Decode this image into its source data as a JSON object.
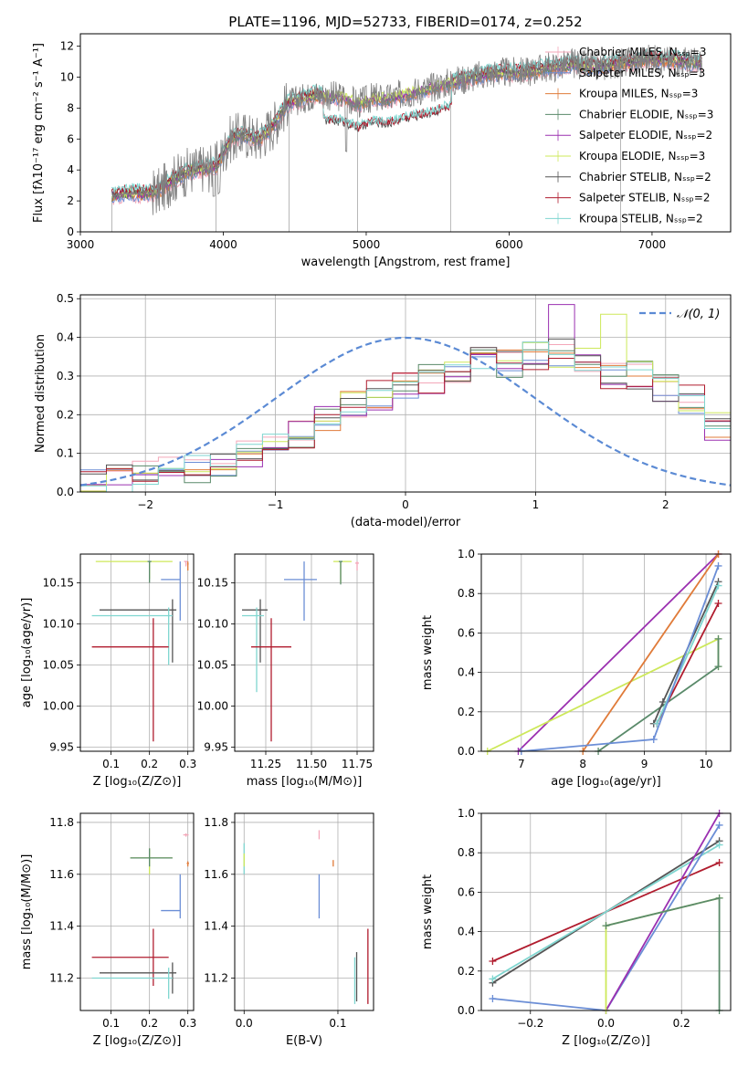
{
  "chart_data": [
    {
      "type": "line",
      "title": "PLATE=1196, MJD=52733, FIBERID=0174, z=0.252",
      "xlabel": "wavelength [Angstrom, rest frame]",
      "ylabel": "Flux [fλ10⁻¹⁷ erg cm⁻² s⁻¹ A⁻¹]",
      "xlim": [
        3000,
        7550
      ],
      "ylim": [
        0,
        12.8
      ],
      "xticks": [
        "3000",
        "4000",
        "5000",
        "6000",
        "7000"
      ],
      "yticks": [
        "0",
        "2",
        "4",
        "6",
        "8",
        "10",
        "12"
      ],
      "legend_position": "top-right",
      "series": [
        {
          "name": "Chabrier MILES, Nₛₛₚ=3",
          "color": "#f4a7b9"
        },
        {
          "name": "Salpeter MILES, Nₛₛₚ=3",
          "color": "#6b8ed6"
        },
        {
          "name": "Kroupa MILES, Nₛₛₚ=3",
          "color": "#e07b39"
        },
        {
          "name": "Chabrier ELODIE, Nₛₛₚ=3",
          "color": "#5a8a6a"
        },
        {
          "name": "Salpeter ELODIE, Nₛₛₚ=2",
          "color": "#9b30b0"
        },
        {
          "name": "Kroupa ELODIE, Nₛₛₚ=3",
          "color": "#cde85a"
        },
        {
          "name": "Chabrier STELIB, Nₛₛₚ=2",
          "color": "#555555"
        },
        {
          "name": "Salpeter STELIB, Nₛₛₚ=2",
          "color": "#b01c2e"
        },
        {
          "name": "Kroupa STELIB, Nₛₛₚ=2",
          "color": "#7fd6d0"
        }
      ],
      "continuum": {
        "x": [
          3220,
          3300,
          3450,
          3550,
          3650,
          3750,
          3850,
          3950,
          4050,
          4150,
          4250,
          4350,
          4450,
          4550,
          4650,
          4750,
          4850,
          4950,
          5050,
          5150,
          5250,
          5350,
          5450,
          5550,
          5650,
          5750,
          5850,
          5950,
          6050,
          6150,
          6250,
          6350,
          6450,
          6550,
          6650,
          6750,
          6850,
          6950,
          7050,
          7150,
          7250,
          7350
        ],
        "y": [
          2.3,
          2.5,
          2.5,
          2.6,
          3.4,
          3.9,
          4.1,
          4.2,
          6.0,
          6.3,
          6.0,
          6.9,
          8.3,
          8.6,
          8.9,
          8.8,
          8.7,
          8.3,
          8.7,
          8.6,
          8.9,
          9.1,
          9.3,
          9.6,
          9.8,
          10.0,
          10.2,
          10.3,
          10.3,
          10.4,
          10.6,
          10.7,
          10.9,
          10.7,
          10.7,
          10.9,
          11.0,
          11.2,
          11.1,
          11.1,
          11.0,
          10.9
        ]
      }
    },
    {
      "type": "line",
      "xlabel": "(data-model)/error",
      "ylabel": "Normed distribution",
      "xlim": [
        -2.5,
        2.5
      ],
      "ylim": [
        0,
        0.51
      ],
      "xticks": [
        "−2",
        "−1",
        "0",
        "1",
        "2"
      ],
      "yticks": [
        "0.0",
        "0.1",
        "0.2",
        "0.3",
        "0.4",
        "0.5"
      ],
      "legend": "𝒩(0, 1)",
      "legend_position": "top-right",
      "reference": {
        "name": "N(0,1)",
        "color": "#5b8ad4",
        "style": "dashed"
      },
      "hist_centers": [
        -2.4,
        -2.2,
        -2.0,
        -1.8,
        -1.6,
        -1.4,
        -1.2,
        -1.0,
        -0.8,
        -0.6,
        -0.4,
        -0.2,
        0.0,
        0.2,
        0.4,
        0.6,
        0.8,
        1.0,
        1.2,
        1.4,
        1.6,
        1.8,
        2.0,
        2.2,
        2.4
      ],
      "hist_base": [
        0.02,
        0.03,
        0.04,
        0.05,
        0.06,
        0.08,
        0.1,
        0.12,
        0.15,
        0.19,
        0.22,
        0.25,
        0.27,
        0.29,
        0.31,
        0.34,
        0.33,
        0.35,
        0.36,
        0.35,
        0.3,
        0.3,
        0.27,
        0.24,
        0.17
      ]
    },
    {
      "type": "scatter",
      "xlabel": "Z [log₁₀(Z/Z⊙)]",
      "ylabel": "age  [log₁₀(age/yr)]",
      "xlim": [
        0.02,
        0.315
      ],
      "ylim": [
        9.945,
        10.185
      ],
      "xticks": [
        "0.1",
        "0.2",
        "0.3"
      ],
      "yticks": [
        "9.95",
        "10.00",
        "10.05",
        "10.10",
        "10.15"
      ],
      "points": [
        {
          "color": "#cde85a",
          "x": 0.2,
          "xe": [
            0.06,
            0.26
          ],
          "y": 10.176,
          "ye": [
            10.155,
            10.176
          ]
        },
        {
          "color": "#f4a7b9",
          "x": 0.295,
          "xe": [
            0.29,
            0.3
          ],
          "y": 10.176,
          "ye": [
            10.17,
            10.176
          ]
        },
        {
          "color": "#e07b39",
          "x": 0.3,
          "xe": [
            0.298,
            0.302
          ],
          "y": 10.173,
          "ye": [
            10.165,
            10.176
          ]
        },
        {
          "color": "#5a8a6a",
          "x": 0.2,
          "xe": [
            0.195,
            0.205
          ],
          "y": 10.176,
          "ye": [
            10.15,
            10.176
          ]
        },
        {
          "color": "#6b8ed6",
          "x": 0.28,
          "xe": [
            0.23,
            0.28
          ],
          "y": 10.154,
          "ye": [
            10.104,
            10.176
          ]
        },
        {
          "color": "#555555",
          "x": 0.26,
          "xe": [
            0.07,
            0.27
          ],
          "y": 10.117,
          "ye": [
            10.053,
            10.13
          ]
        },
        {
          "color": "#7fd6d0",
          "x": 0.25,
          "xe": [
            0.05,
            0.26
          ],
          "y": 10.11,
          "ye": [
            10.05,
            10.12
          ]
        },
        {
          "color": "#b01c2e",
          "x": 0.21,
          "xe": [
            0.05,
            0.25
          ],
          "y": 10.072,
          "ye": [
            9.957,
            10.107
          ]
        }
      ]
    },
    {
      "type": "scatter",
      "xlabel": "mass [log₁₀(M/M⊙)]",
      "xlim": [
        11.08,
        11.84
      ],
      "ylim": [
        9.945,
        10.185
      ],
      "xticks": [
        "11.25",
        "11.50",
        "11.75"
      ],
      "yticks": [
        "9.95",
        "10.00",
        "10.05",
        "10.10",
        "10.15"
      ],
      "points": [
        {
          "color": "#cde85a",
          "x": 11.66,
          "xe": [
            11.62,
            11.72
          ],
          "y": 10.176,
          "ye": [
            10.15,
            10.176
          ]
        },
        {
          "color": "#5a8a6a",
          "x": 11.66,
          "xe": [
            11.65,
            11.67
          ],
          "y": 10.176,
          "ye": [
            10.148,
            10.176
          ]
        },
        {
          "color": "#f4a7b9",
          "x": 11.75,
          "xe": [
            11.74,
            11.76
          ],
          "y": 10.174,
          "ye": [
            10.165,
            10.176
          ]
        },
        {
          "color": "#6b8ed6",
          "x": 11.46,
          "xe": [
            11.35,
            11.53
          ],
          "y": 10.154,
          "ye": [
            10.104,
            10.176
          ]
        },
        {
          "color": "#555555",
          "x": 11.22,
          "xe": [
            11.12,
            11.26
          ],
          "y": 10.117,
          "ye": [
            10.053,
            10.13
          ]
        },
        {
          "color": "#7fd6d0",
          "x": 11.2,
          "xe": [
            11.12,
            11.24
          ],
          "y": 10.11,
          "ye": [
            10.017,
            10.12
          ]
        },
        {
          "color": "#b01c2e",
          "x": 11.28,
          "xe": [
            11.17,
            11.39
          ],
          "y": 10.072,
          "ye": [
            9.957,
            10.107
          ]
        }
      ]
    },
    {
      "type": "line",
      "xlabel": "age  [log₁₀(age/yr)]",
      "ylabel": "mass weight",
      "xlim": [
        6.35,
        10.4
      ],
      "ylim": [
        0,
        1
      ],
      "xticks": [
        "7",
        "8",
        "9",
        "10"
      ],
      "yticks": [
        "0.0",
        "0.2",
        "0.4",
        "0.6",
        "0.8",
        "1.0"
      ],
      "series": [
        {
          "color": "#9b30b0",
          "x": [
            6.95,
            10.2
          ],
          "y": [
            0.0,
            1.0
          ]
        },
        {
          "color": "#cde85a",
          "x": [
            6.45,
            10.2,
            10.2
          ],
          "y": [
            0.0,
            0.57,
            0.43
          ]
        },
        {
          "color": "#e07b39",
          "x": [
            8.0,
            10.2
          ],
          "y": [
            0.0,
            1.0
          ]
        },
        {
          "color": "#5a8a6a",
          "x": [
            8.25,
            10.2,
            10.2
          ],
          "y": [
            0.0,
            0.43,
            0.57
          ]
        },
        {
          "color": "#555555",
          "x": [
            9.15,
            9.3,
            10.2
          ],
          "y": [
            0.14,
            0.25,
            0.86
          ]
        },
        {
          "color": "#b01c2e",
          "x": [
            9.2,
            10.2
          ],
          "y": [
            0.14,
            0.75
          ]
        },
        {
          "color": "#7fd6d0",
          "x": [
            9.2,
            10.2
          ],
          "y": [
            0.14,
            0.84
          ]
        },
        {
          "color": "#6b8ed6",
          "x": [
            7.0,
            9.15,
            10.2
          ],
          "y": [
            0.0,
            0.06,
            0.94
          ]
        }
      ]
    },
    {
      "type": "scatter",
      "xlabel": "Z [log₁₀(Z/Z⊙)]",
      "ylabel": "mass [log₁₀(M/M⊙)]",
      "xlim": [
        0.02,
        0.315
      ],
      "ylim": [
        11.075,
        11.835
      ],
      "xticks": [
        "0.1",
        "0.2",
        "0.3"
      ],
      "yticks": [
        "11.2",
        "11.4",
        "11.6",
        "11.8"
      ],
      "points": [
        {
          "color": "#f4a7b9",
          "x": 0.295,
          "xe": [
            0.288,
            0.302
          ],
          "y": 11.752,
          "ye": [
            11.745,
            11.758
          ]
        },
        {
          "color": "#e07b39",
          "x": 0.3,
          "xe": [
            0.297,
            0.303
          ],
          "y": 11.642,
          "ye": [
            11.63,
            11.65
          ]
        },
        {
          "color": "#cde85a",
          "x": 0.2,
          "xe": [
            0.15,
            0.26
          ],
          "y": 11.663,
          "ye": [
            11.6,
            11.7
          ]
        },
        {
          "color": "#5a8a6a",
          "x": 0.2,
          "xe": [
            0.15,
            0.26
          ],
          "y": 11.663,
          "ye": [
            11.63,
            11.7
          ]
        },
        {
          "color": "#6b8ed6",
          "x": 0.28,
          "xe": [
            0.23,
            0.28
          ],
          "y": 11.46,
          "ye": [
            11.43,
            11.6
          ]
        },
        {
          "color": "#b01c2e",
          "x": 0.21,
          "xe": [
            0.05,
            0.25
          ],
          "y": 11.28,
          "ye": [
            11.17,
            11.39
          ]
        },
        {
          "color": "#555555",
          "x": 0.26,
          "xe": [
            0.07,
            0.27
          ],
          "y": 11.22,
          "ye": [
            11.14,
            11.26
          ]
        },
        {
          "color": "#7fd6d0",
          "x": 0.25,
          "xe": [
            0.05,
            0.26
          ],
          "y": 11.2,
          "ye": [
            11.12,
            11.24
          ]
        }
      ]
    },
    {
      "type": "scatter",
      "xlabel": "E(B-V)",
      "xlim": [
        -0.01,
        0.138
      ],
      "ylim": [
        11.075,
        11.835
      ],
      "xticks": [
        "0.0",
        "0.1"
      ],
      "yticks": [
        "11.2",
        "11.4",
        "11.6",
        "11.8"
      ],
      "points": [
        {
          "color": "#7fd6d0",
          "x": 0.0,
          "y1": 11.6,
          "y2": 11.72
        },
        {
          "color": "#cde85a",
          "x": 0.0,
          "y1": 11.63,
          "y2": 11.68
        },
        {
          "color": "#f4a7b9",
          "x": 0.08,
          "y1": 11.735,
          "y2": 11.77
        },
        {
          "color": "#e07b39",
          "x": 0.095,
          "y1": 11.63,
          "y2": 11.655
        },
        {
          "color": "#6b8ed6",
          "x": 0.08,
          "y1": 11.43,
          "y2": 11.6
        },
        {
          "color": "#555555",
          "x": 0.12,
          "y1": 11.11,
          "y2": 11.3
        },
        {
          "color": "#7fd6d0",
          "x": 0.118,
          "y1": 11.1,
          "y2": 11.28
        },
        {
          "color": "#b01c2e",
          "x": 0.132,
          "y1": 11.1,
          "y2": 11.39
        }
      ]
    },
    {
      "type": "line",
      "xlabel": "Z [log₁₀(Z/Z⊙)]",
      "ylabel": "mass weight",
      "xlim": [
        -0.33,
        0.33
      ],
      "ylim": [
        0,
        1
      ],
      "xticks": [
        "−0.2",
        "0.0",
        "0.2"
      ],
      "yticks": [
        "0.0",
        "0.2",
        "0.4",
        "0.6",
        "0.8",
        "1.0"
      ],
      "series": [
        {
          "color": "#b01c2e",
          "x": [
            -0.3,
            0.3
          ],
          "y": [
            0.25,
            0.75
          ]
        },
        {
          "color": "#555555",
          "x": [
            -0.3,
            0.3
          ],
          "y": [
            0.14,
            0.86
          ]
        },
        {
          "color": "#7fd6d0",
          "x": [
            -0.3,
            0.3
          ],
          "y": [
            0.16,
            0.84
          ]
        },
        {
          "color": "#6b8ed6",
          "x": [
            -0.3,
            0.0,
            0.3
          ],
          "y": [
            0.06,
            0.0,
            0.94
          ]
        },
        {
          "color": "#9b30b0",
          "x": [
            0.0,
            0.3
          ],
          "y": [
            0.0,
            1.0
          ]
        },
        {
          "color": "#cde85a",
          "x": [
            0.0,
            0.0,
            0.3
          ],
          "y": [
            0.0,
            0.43,
            0.57
          ]
        },
        {
          "color": "#5a8a6a",
          "x": [
            0.0,
            0.3,
            0.3
          ],
          "y": [
            0.43,
            0.57,
            0.0
          ]
        }
      ]
    }
  ]
}
